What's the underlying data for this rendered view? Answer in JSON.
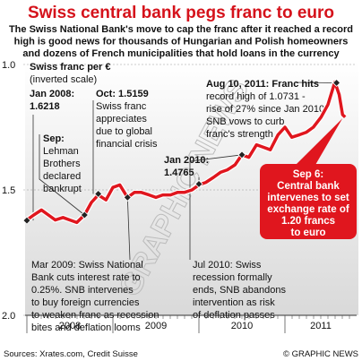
{
  "chart_data": {
    "type": "line",
    "title": "Swiss central bank pegs franc to euro",
    "subtitle": [
      "The Swiss National Bank's move to cap the franc after it reached a record",
      "high is good news for thousands of Hungarian and Polish homeowners",
      "and dozens of French municipalities that hold loans in the currency"
    ],
    "y_label": "Swiss franc per €",
    "y_note": "(inverted scale)",
    "inverted": true,
    "ylim": [
      1,
      2
    ],
    "yticks": [
      {
        "value": 1,
        "label": "1.0"
      },
      1.5,
      {
        "value": 2,
        "label": "2.0"
      }
    ],
    "xlim": [
      2008,
      2011.75
    ],
    "xticks": [
      2008,
      2009,
      2010,
      2011
    ],
    "color": "#e0161e",
    "x": [
      2008.0,
      2008.08,
      2008.17,
      2008.25,
      2008.33,
      2008.42,
      2008.5,
      2008.58,
      2008.67,
      2008.75,
      2008.83,
      2008.92,
      2009.0,
      2009.08,
      2009.17,
      2009.25,
      2009.33,
      2009.42,
      2009.5,
      2009.58,
      2009.67,
      2009.75,
      2009.83,
      2009.92,
      2010.0,
      2010.08,
      2010.17,
      2010.25,
      2010.33,
      2010.42,
      2010.5,
      2010.58,
      2010.67,
      2010.75,
      2010.83,
      2010.92,
      2011.0,
      2011.08,
      2011.17,
      2011.25,
      2011.33,
      2011.42,
      2011.5,
      2011.58,
      2011.63,
      2011.67,
      2011.7
    ],
    "values": [
      1.62,
      1.6,
      1.58,
      1.6,
      1.62,
      1.61,
      1.62,
      1.63,
      1.6,
      1.55,
      1.52,
      1.54,
      1.49,
      1.48,
      1.53,
      1.51,
      1.51,
      1.52,
      1.53,
      1.52,
      1.52,
      1.51,
      1.51,
      1.5,
      1.48,
      1.47,
      1.45,
      1.43,
      1.42,
      1.4,
      1.36,
      1.37,
      1.32,
      1.33,
      1.34,
      1.28,
      1.25,
      1.29,
      1.28,
      1.27,
      1.25,
      1.21,
      1.16,
      1.07,
      1.12,
      1.2,
      1.21
    ],
    "annotations": [
      {
        "lines": [
          "Jan 2008:",
          "1.6218"
        ],
        "point": [
          2008.0,
          1.6218
        ]
      },
      {
        "lines": [
          "Sep:",
          "Lehman",
          "Brothers",
          "declared",
          "bankrupt"
        ],
        "point": [
          2008.67,
          1.6
        ]
      },
      {
        "lines": [
          "Oct: 1.5159",
          "Swiss franc",
          "appreciates",
          "due to global",
          "financial crisis"
        ],
        "point": [
          2008.83,
          1.5159
        ]
      },
      {
        "lines": [
          "Jan 2010:",
          "1.4765"
        ],
        "point": [
          2010.0,
          1.4765
        ]
      },
      {
        "lines": [
          "Aug 10, 2011: Franc hits",
          "record high of 1.0731 -",
          "rise of 27% since Jan 2010.",
          "SNB vows to curb",
          "franc's strength"
        ],
        "point": [
          2011.6,
          1.0731
        ]
      },
      {
        "lines": [
          "Sep 6:",
          "Central bank",
          "intervenes to set",
          "exchange rate of",
          "1.20 francs",
          "to euro"
        ],
        "point": [
          2011.67,
          1.2
        ]
      },
      {
        "lines": [
          "Mar 2009: Swiss National",
          "Bank cuts interest rate to",
          "0.25%. SNB intervenes",
          "to buy foreign currencies",
          "to weaken franc as recession",
          "bites and deflation looms"
        ],
        "point": [
          2009.17,
          1.53
        ]
      },
      {
        "lines": [
          "Jul 2010: Swiss",
          "recession formally",
          "ends, SNB abandons",
          "intervention as risk",
          "of deflation passes"
        ],
        "point": [
          2010.5,
          1.36
        ]
      }
    ],
    "watermark": "GRAPHIC NEWS",
    "source": "Sources: Xrates.com, Credit Suisse",
    "credit": "© GRAPHIC NEWS"
  }
}
